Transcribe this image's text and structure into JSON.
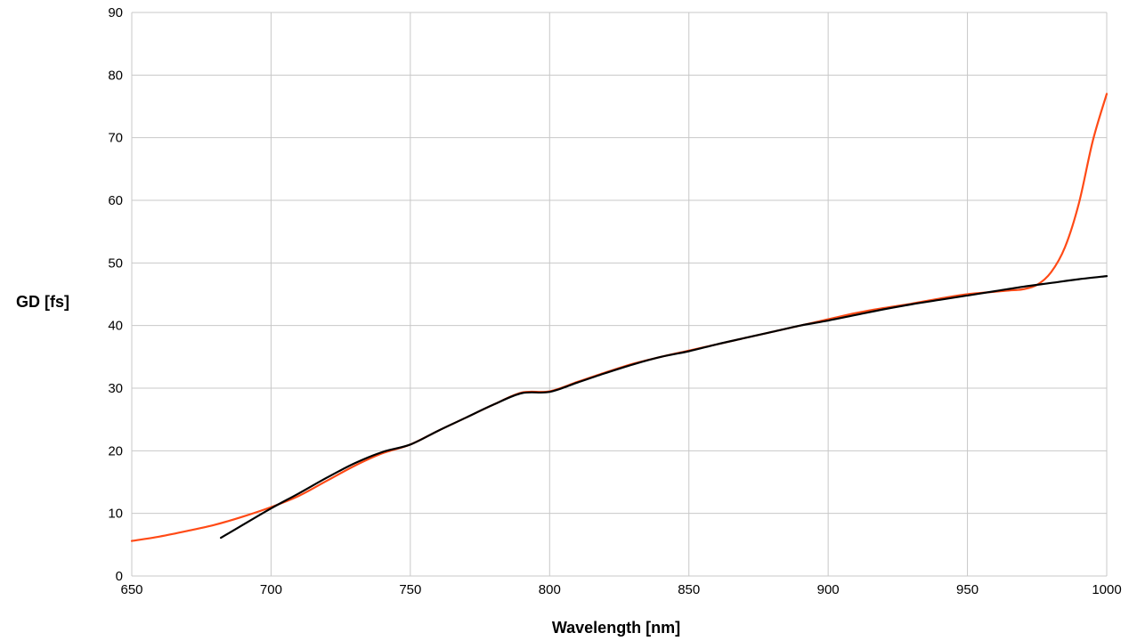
{
  "chart_data": {
    "type": "line",
    "title": "",
    "xlabel": "Wavelength [nm]",
    "ylabel": "GD [fs]",
    "xlim": [
      650,
      1000
    ],
    "ylim": [
      0,
      90
    ],
    "xticks": [
      650,
      700,
      750,
      800,
      850,
      900,
      950,
      1000
    ],
    "yticks": [
      0,
      10,
      20,
      30,
      40,
      50,
      60,
      70,
      80,
      90
    ],
    "grid": true,
    "legend": "none",
    "series": [
      {
        "color": "#ff4a16",
        "x": [
          650,
          660,
          670,
          680,
          690,
          700,
          710,
          720,
          730,
          740,
          750,
          760,
          770,
          780,
          790,
          800,
          810,
          820,
          830,
          840,
          850,
          860,
          870,
          880,
          890,
          900,
          910,
          920,
          930,
          940,
          950,
          960,
          965,
          970,
          975,
          980,
          985,
          990,
          995,
          1000
        ],
        "y": [
          5.6,
          6.3,
          7.2,
          8.2,
          9.5,
          11.0,
          12.8,
          15.2,
          17.6,
          19.6,
          21.0,
          23.2,
          25.3,
          27.4,
          29.3,
          29.5,
          31.0,
          32.5,
          33.9,
          35.0,
          36.0,
          37.0,
          38.0,
          39.0,
          40.0,
          41.0,
          42.0,
          42.8,
          43.5,
          44.3,
          45.0,
          45.4,
          45.6,
          45.8,
          46.5,
          48.5,
          52.5,
          59.5,
          69.5,
          77.0
        ]
      },
      {
        "color": "#000000",
        "x": [
          682,
          690,
          700,
          710,
          720,
          730,
          740,
          750,
          760,
          770,
          780,
          790,
          800,
          810,
          820,
          830,
          840,
          850,
          860,
          870,
          880,
          890,
          900,
          910,
          920,
          930,
          940,
          950,
          960,
          970,
          980,
          990,
          1000
        ],
        "y": [
          6.1,
          8.2,
          10.8,
          13.2,
          15.7,
          18.0,
          19.8,
          21.0,
          23.2,
          25.3,
          27.4,
          29.2,
          29.4,
          30.9,
          32.4,
          33.8,
          35.0,
          35.9,
          37.0,
          38.0,
          39.0,
          40.0,
          40.8,
          41.7,
          42.6,
          43.4,
          44.1,
          44.8,
          45.5,
          46.2,
          46.8,
          47.4,
          47.9
        ]
      }
    ]
  }
}
